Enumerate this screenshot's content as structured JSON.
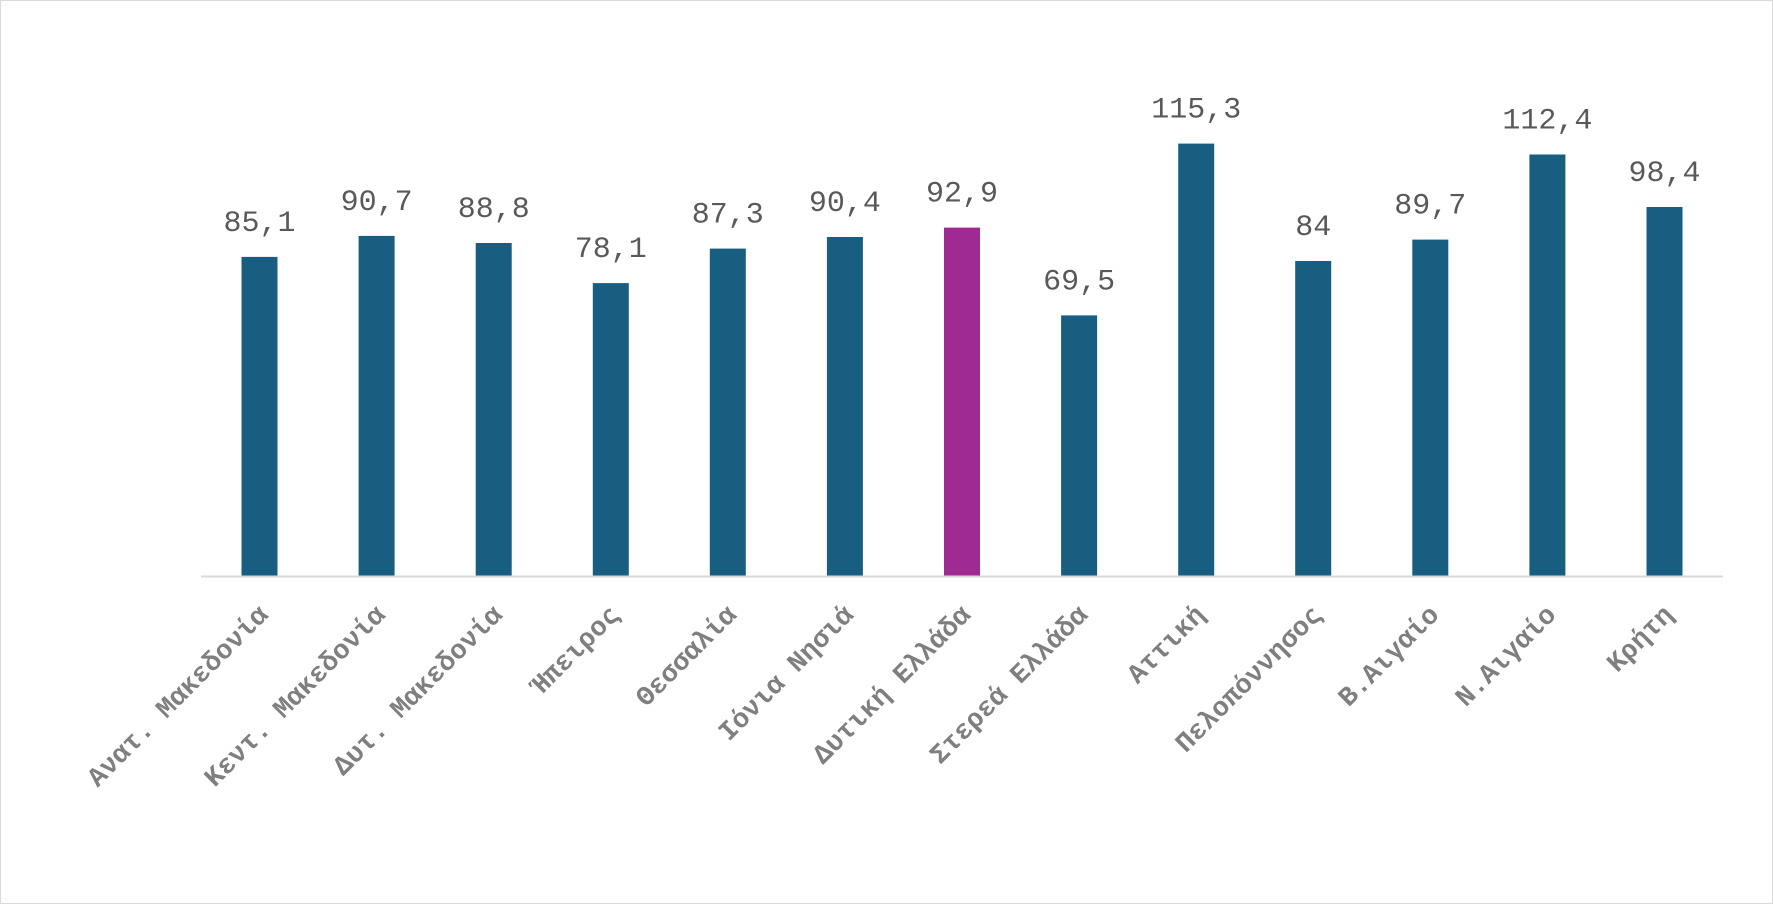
{
  "chart_data": {
    "type": "bar",
    "categories": [
      "Ανατ. Μακεδονία",
      "Κεντ. Μακεδονία",
      "Δυτ. Μακεδονία",
      "Ήπειρος",
      "Θεσσαλία",
      "Ιόνια Νησιά",
      "Δυτική Ελλάδα",
      "Στερεά Ελλάδα",
      "Αττική",
      "Πελοπόννησος",
      "Β.Αιγαίο",
      "Ν.Αιγαίο",
      "Κρήτη"
    ],
    "values": [
      85.1,
      90.7,
      88.8,
      78.1,
      87.3,
      90.4,
      92.9,
      69.5,
      115.3,
      84,
      89.7,
      112.4,
      98.4
    ],
    "value_labels": [
      "85,1",
      "90,7",
      "88,8",
      "78,1",
      "87,3",
      "90,4",
      "92,9",
      "69,5",
      "115,3",
      "84",
      "89,7",
      "112,4",
      "98,4"
    ],
    "ylim": [
      0,
      120
    ],
    "grid": false,
    "legend": "none",
    "colors": {
      "bar": "#175e80",
      "highlight": "#9e2a92",
      "axis": "#d9d9d9",
      "value_text": "#595959",
      "category_text": "#7f7f7f"
    },
    "highlight_index": 6
  }
}
